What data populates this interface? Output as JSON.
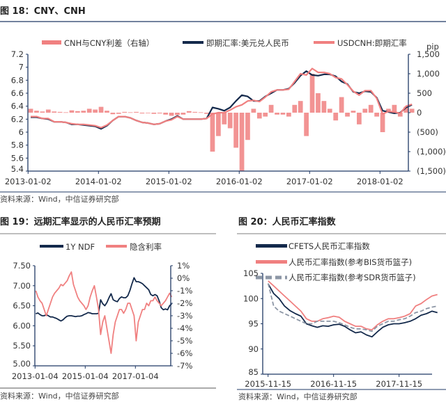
{
  "colors": {
    "navy": "#13294b",
    "salmon": "#f08080",
    "gray": "#8c96a5",
    "axis": "#1f3864"
  },
  "source": "资料来源：Wind，中信证券研究部",
  "chart_data": [
    {
      "id": "fig18",
      "title": "图 18：CNY、CNH",
      "type": "line",
      "right_axis_unit": "pip",
      "xlim": [
        "2013-01-02",
        "2018-06"
      ],
      "ylim": [
        5.4,
        7.2
      ],
      "y2lim": [
        -1500,
        1500
      ],
      "x_ticks": [
        "2013-01-02",
        "2014-01-02",
        "2015-01-02",
        "2016-01-02",
        "2017-01-02",
        "2018-01-02"
      ],
      "y_ticks": [
        "7.2",
        "7",
        "6.8",
        "6.6",
        "6.4",
        "6.2",
        "6",
        "5.8",
        "5.6",
        "5.4"
      ],
      "y2_ticks": [
        "1,500",
        "1,000",
        "500",
        "0",
        "(500)",
        "(1,000)",
        "(1,500)"
      ],
      "grid": false,
      "legend": "top",
      "x_start": "2013-01",
      "x_step": "month",
      "series": [
        {
          "name": "CNH与CNY利差（右轴）",
          "axis": "right",
          "style": "bar",
          "color": "#f08080",
          "values": [
            100,
            50,
            30,
            80,
            30,
            20,
            10,
            60,
            40,
            50,
            100,
            80,
            150,
            50,
            -40,
            -30,
            20,
            10,
            20,
            -20,
            0,
            -30,
            -20,
            -50,
            -80,
            -60,
            -50,
            40,
            20,
            10,
            -30,
            -1000,
            -600,
            -300,
            -400,
            -900,
            -1500,
            -700,
            100,
            -150,
            -100,
            200,
            -50,
            -50,
            -100,
            200,
            300,
            -600,
            1000,
            500,
            300,
            100,
            -200,
            400,
            -100,
            50,
            -300,
            100,
            200,
            -100,
            -500,
            100,
            200,
            -100,
            150,
            100
          ]
        },
        {
          "name": "即期汇率:美元兑人民币",
          "axis": "left",
          "style": "line",
          "color": "#13294b",
          "values": [
            6.23,
            6.23,
            6.21,
            6.2,
            6.16,
            6.16,
            6.15,
            6.12,
            6.12,
            6.11,
            6.1,
            6.09,
            6.05,
            6.1,
            6.18,
            6.24,
            6.24,
            6.22,
            6.18,
            6.15,
            6.14,
            6.12,
            6.13,
            6.17,
            6.2,
            6.25,
            6.2,
            6.2,
            6.2,
            6.2,
            6.21,
            6.38,
            6.36,
            6.33,
            6.38,
            6.48,
            6.57,
            6.55,
            6.48,
            6.48,
            6.55,
            6.6,
            6.65,
            6.65,
            6.67,
            6.76,
            6.87,
            6.94,
            6.88,
            6.87,
            6.89,
            6.89,
            6.86,
            6.78,
            6.74,
            6.62,
            6.6,
            6.63,
            6.62,
            6.53,
            6.33,
            6.31,
            6.29,
            6.3,
            6.38,
            6.42
          ]
        },
        {
          "name": "USDCNH:即期汇率",
          "axis": "left",
          "style": "line",
          "color": "#f08080",
          "values": [
            6.24,
            6.24,
            6.21,
            6.21,
            6.16,
            6.16,
            6.15,
            6.13,
            6.12,
            6.12,
            6.11,
            6.1,
            6.07,
            6.11,
            6.18,
            6.24,
            6.24,
            6.22,
            6.18,
            6.15,
            6.14,
            6.12,
            6.13,
            6.17,
            6.19,
            6.24,
            6.2,
            6.2,
            6.2,
            6.2,
            6.21,
            6.28,
            6.3,
            6.3,
            6.34,
            6.39,
            6.42,
            6.48,
            6.49,
            6.47,
            6.54,
            6.62,
            6.65,
            6.65,
            6.66,
            6.78,
            6.9,
            6.88,
            6.98,
            6.92,
            6.92,
            6.9,
            6.84,
            6.82,
            6.73,
            6.63,
            6.57,
            6.64,
            6.64,
            6.52,
            6.28,
            6.32,
            6.31,
            6.29,
            6.4,
            6.43
          ]
        }
      ]
    },
    {
      "id": "fig19",
      "title": "图 19：远期汇率显示的人民币汇率预期",
      "type": "line",
      "xlim": [
        "2013-01-04",
        "2018-06"
      ],
      "ylim": [
        5.0,
        7.5
      ],
      "y2lim": [
        -7,
        1
      ],
      "x_ticks": [
        "2013-01-04",
        "2015-01-04",
        "2017-01-04"
      ],
      "y_ticks": [
        "7.50",
        "7.00",
        "6.50",
        "6.00",
        "5.50",
        "5.00"
      ],
      "y2_ticks": [
        "1%",
        "0%",
        "-1%",
        "-2%",
        "-3%",
        "-4%",
        "-5%",
        "-6%",
        "-7%"
      ],
      "grid": false,
      "legend": "top",
      "x_start": "2013-01",
      "x_step": "month",
      "series": [
        {
          "name": "1Y NDF",
          "axis": "left",
          "color": "#13294b",
          "values": [
            6.3,
            6.32,
            6.28,
            6.25,
            6.25,
            6.28,
            6.25,
            6.22,
            6.22,
            6.2,
            6.18,
            6.15,
            6.12,
            6.15,
            6.2,
            6.24,
            6.25,
            6.25,
            6.24,
            6.23,
            6.24,
            6.24,
            6.25,
            6.28,
            6.3,
            6.33,
            6.32,
            6.3,
            6.3,
            6.3,
            6.31,
            6.65,
            6.55,
            6.5,
            6.58,
            6.7,
            6.8,
            6.65,
            6.62,
            6.6,
            6.68,
            6.72,
            6.7,
            6.7,
            6.75,
            6.88,
            7.05,
            7.2,
            7.1,
            7.1,
            7.08,
            7.05,
            7.0,
            6.95,
            6.9,
            6.78,
            6.75,
            6.78,
            6.75,
            6.62,
            6.45,
            6.4,
            6.42,
            6.4,
            6.5,
            6.55
          ]
        },
        {
          "name": "隐含利率",
          "axis": "right",
          "unit": "%",
          "color": "#f08080",
          "values": [
            -1.0,
            -1.5,
            -1.8,
            -2.0,
            -2.5,
            -3.0,
            -2.5,
            -2.0,
            -1.5,
            -1.2,
            -1.0,
            -0.8,
            -0.5,
            -0.6,
            -0.4,
            -0.2,
            0.2,
            0.5,
            -0.5,
            -1.0,
            -1.5,
            -1.8,
            -2.0,
            -2.2,
            -2.5,
            -2.2,
            -1.5,
            -1.0,
            -0.6,
            -1.5,
            -2.5,
            -4.5,
            -3.5,
            -3.0,
            -4.0,
            -5.0,
            -6.0,
            -4.5,
            -3.5,
            -3.0,
            -2.5,
            -2.5,
            -2.8,
            -2.5,
            -2.0,
            -2.0,
            -2.5,
            -3.0,
            -5.0,
            -3.5,
            -3.0,
            -2.5,
            -2.5,
            -2.0,
            -2.2,
            -1.8,
            -1.8,
            -1.5,
            -1.8,
            -2.0,
            -2.2,
            -2.0,
            -1.8,
            -1.5,
            -1.2,
            -1.5
          ]
        }
      ]
    },
    {
      "id": "fig20",
      "title": "图 20：人民币汇率指数",
      "type": "line",
      "xlim": [
        "2015-11-15",
        "2018-06"
      ],
      "ylim": [
        85,
        105
      ],
      "x_ticks": [
        "2015-11-15",
        "2016-11-15",
        "2017-11-15"
      ],
      "y_ticks": [
        "105",
        "100",
        "95",
        "90",
        "85"
      ],
      "grid": false,
      "legend": "top-left",
      "x_start": "2015-11",
      "x_step": "month",
      "series": [
        {
          "name": "CFETS人民币汇率指数",
          "color": "#13294b",
          "dash": false,
          "values": [
            102.9,
            101.0,
            100.0,
            98.5,
            97.6,
            97.0,
            96.5,
            95.0,
            94.6,
            94.3,
            94.6,
            94.5,
            94.8,
            94.9,
            94.5,
            93.8,
            93.2,
            93.4,
            92.8,
            92.4,
            93.4,
            94.3,
            94.8,
            95.0,
            95.0,
            95.2,
            95.5,
            96.0,
            96.7,
            97.0,
            97.5,
            97.2
          ]
        },
        {
          "name": "人民币汇率指数(参考BIS货币篮子)",
          "color": "#f08080",
          "dash": false,
          "values": [
            103.5,
            102.5,
            101.5,
            100.5,
            99.5,
            98.5,
            97.5,
            96.0,
            95.5,
            95.5,
            96.0,
            96.2,
            96.5,
            96.3,
            95.5,
            95.0,
            94.5,
            94.5,
            94.0,
            93.8,
            94.8,
            95.5,
            96.0,
            96.0,
            96.2,
            96.5,
            97.0,
            98.5,
            99.0,
            99.8,
            100.5,
            100.8
          ]
        },
        {
          "name": "人民币汇率指数(参考SDR货币篮子)",
          "color": "#8c96a5",
          "dash": true,
          "values": [
            103.0,
            98.5,
            97.5,
            97.0,
            96.5,
            96.0,
            95.5,
            95.0,
            95.0,
            95.5,
            95.5,
            95.5,
            95.5,
            95.2,
            94.8,
            94.3,
            94.0,
            94.0,
            93.8,
            93.5,
            94.5,
            95.0,
            95.5,
            95.5,
            95.8,
            96.0,
            96.5,
            97.2,
            97.5,
            98.0,
            98.3,
            98.5
          ]
        }
      ]
    }
  ]
}
